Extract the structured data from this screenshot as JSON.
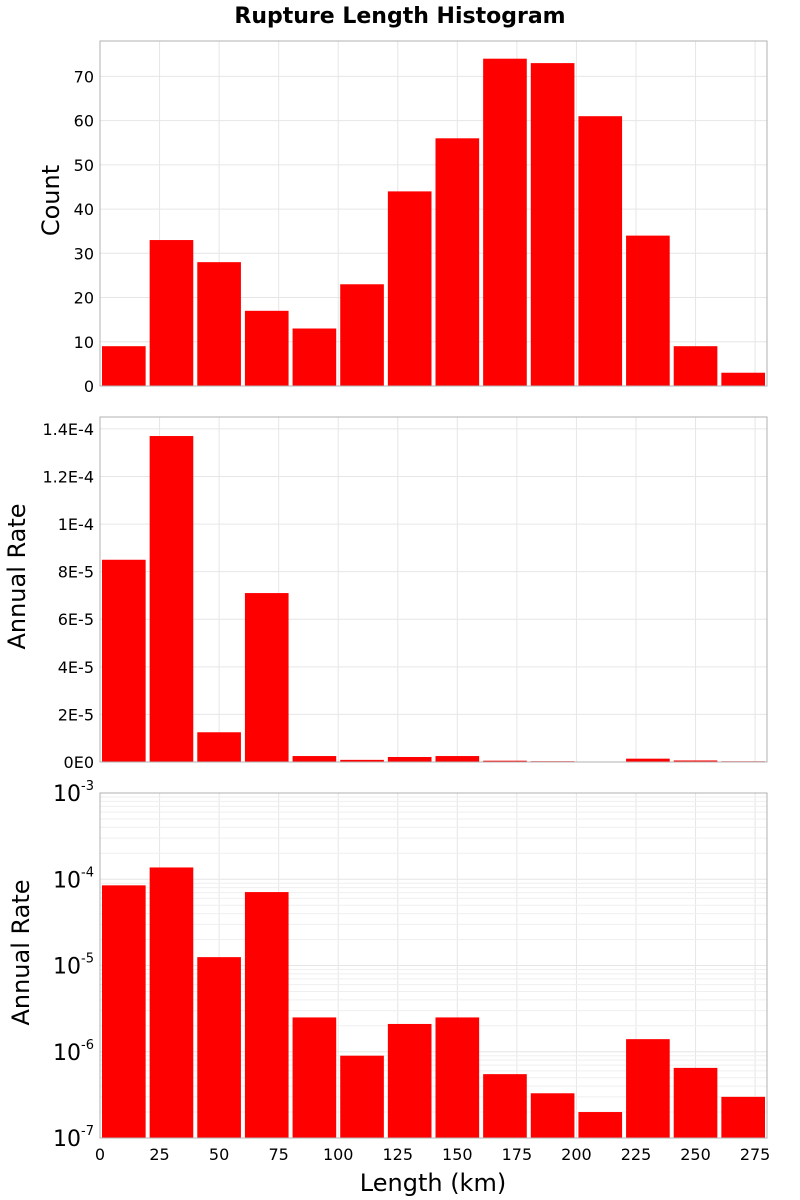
{
  "title": "Rupture Length Histogram",
  "colors": {
    "bar": "#ff0000",
    "grid": "#e6e6e6",
    "frame": "#b0b0b0"
  },
  "chart_data": [
    {
      "type": "bar",
      "title": "Rupture Length Histogram",
      "xlabel": "Length (km)",
      "ylabel": "Count",
      "scale": "linear",
      "bin_width": 20,
      "x": [
        10,
        30,
        50,
        70,
        90,
        110,
        130,
        150,
        170,
        190,
        210,
        230,
        250,
        270
      ],
      "values": [
        9,
        33,
        28,
        17,
        13,
        23,
        44,
        56,
        74,
        73,
        61,
        34,
        9,
        3
      ],
      "xlim": [
        0,
        280
      ],
      "ylim": [
        0,
        78
      ],
      "ytick_values": [
        0,
        10,
        20,
        30,
        40,
        50,
        60,
        70
      ],
      "ytick_labels": [
        "0",
        "10",
        "20",
        "30",
        "40",
        "50",
        "60",
        "70"
      ],
      "grid": true
    },
    {
      "type": "bar",
      "xlabel": "Length (km)",
      "ylabel": "Annual Rate",
      "scale": "linear",
      "bin_width": 20,
      "x": [
        10,
        30,
        50,
        70,
        90,
        110,
        130,
        150,
        170,
        190,
        210,
        230,
        250,
        270
      ],
      "values": [
        8.5e-05,
        0.000137,
        1.25e-05,
        7.1e-05,
        2.5e-06,
        9e-07,
        2.1e-06,
        2.5e-06,
        5.5e-07,
        3.3e-07,
        2e-07,
        1.4e-06,
        6.5e-07,
        3e-07
      ],
      "xlim": [
        0,
        280
      ],
      "ylim": [
        0,
        0.000145
      ],
      "ytick_values": [
        0,
        2e-05,
        4e-05,
        6e-05,
        8e-05,
        0.0001,
        0.00012,
        0.00014
      ],
      "ytick_labels": [
        "0E0",
        "2E-5",
        "4E-5",
        "6E-5",
        "8E-5",
        "1E-4",
        "1.2E-4",
        "1.4E-4"
      ],
      "grid": true
    },
    {
      "type": "bar",
      "xlabel": "Length (km)",
      "ylabel": "Annual Rate",
      "scale": "log",
      "bin_width": 20,
      "x": [
        10,
        30,
        50,
        70,
        90,
        110,
        130,
        150,
        170,
        190,
        210,
        230,
        250,
        270
      ],
      "values": [
        8.5e-05,
        0.000137,
        1.25e-05,
        7.1e-05,
        2.5e-06,
        9e-07,
        2.1e-06,
        2.5e-06,
        5.5e-07,
        3.3e-07,
        2e-07,
        1.4e-06,
        6.5e-07,
        3e-07
      ],
      "xlim": [
        0,
        280
      ],
      "ylim": [
        1e-07,
        0.001
      ],
      "ytick_values": [
        1e-07,
        1e-06,
        1e-05,
        0.0001,
        0.001
      ],
      "ytick_bases": [
        "10",
        "10",
        "10",
        "10",
        "10"
      ],
      "ytick_exponents": [
        "-7",
        "-6",
        "-5",
        "-4",
        "-3"
      ],
      "xtick_values": [
        0,
        25,
        50,
        75,
        100,
        125,
        150,
        175,
        200,
        225,
        250,
        275
      ],
      "xtick_labels": [
        "0",
        "25",
        "50",
        "75",
        "100",
        "125",
        "150",
        "175",
        "200",
        "225",
        "250",
        "275"
      ],
      "grid": true
    }
  ]
}
